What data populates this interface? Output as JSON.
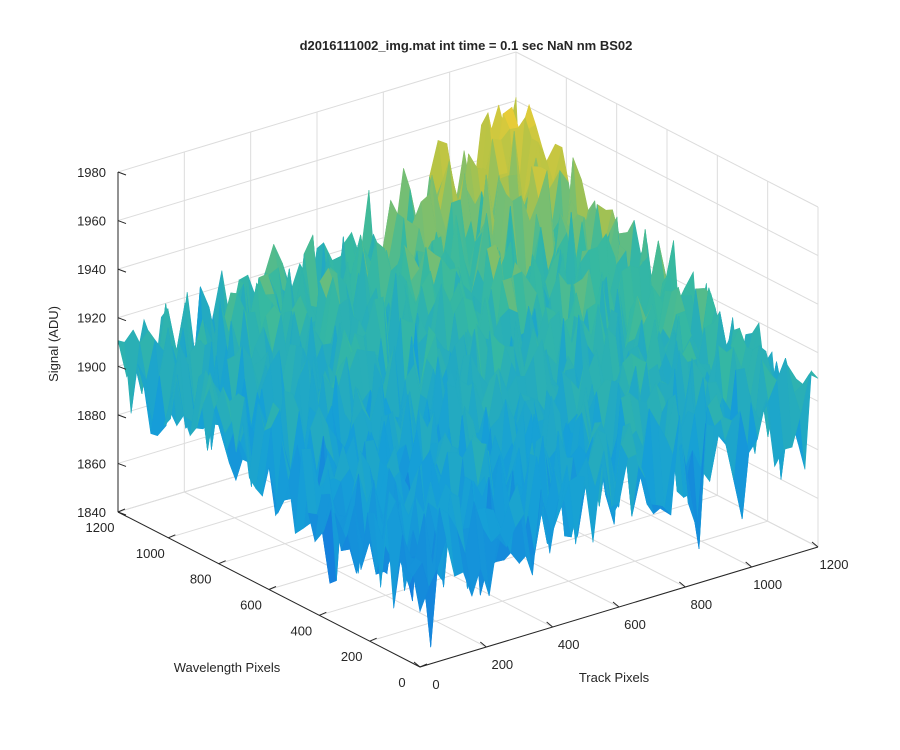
{
  "chart_data": {
    "type": "surface",
    "title": "d2016111002_img.mat int time = 0.1 sec  NaN nm BS02",
    "xlabel": "Track Pixels",
    "ylabel": "Wavelength Pixels",
    "zlabel": "Signal (ADU)",
    "xlim": [
      0,
      1200
    ],
    "ylim": [
      0,
      1200
    ],
    "zlim": [
      1840,
      1980
    ],
    "x_ticks": [
      "0",
      "200",
      "400",
      "600",
      "800",
      "1000",
      "1200"
    ],
    "y_ticks": [
      "0",
      "200",
      "400",
      "600",
      "800",
      "1000",
      "1200"
    ],
    "z_ticks": [
      "1840",
      "1860",
      "1880",
      "1900",
      "1920",
      "1940",
      "1960",
      "1980"
    ],
    "grid": true,
    "view": "3d-isometric",
    "colormap": "parula",
    "colors": {
      "low": "#1a7fe0",
      "mid": "#35b7a6",
      "high": "#e6c83a"
    },
    "surface_summary": {
      "corner_x0_y0": 1878,
      "corner_x1200_y0": 1900,
      "corner_x0_y1200": 1902,
      "corner_x1200_y1200": 1930,
      "peak_near_x1200_y1200": 1945,
      "noise_amplitude": 22
    }
  }
}
